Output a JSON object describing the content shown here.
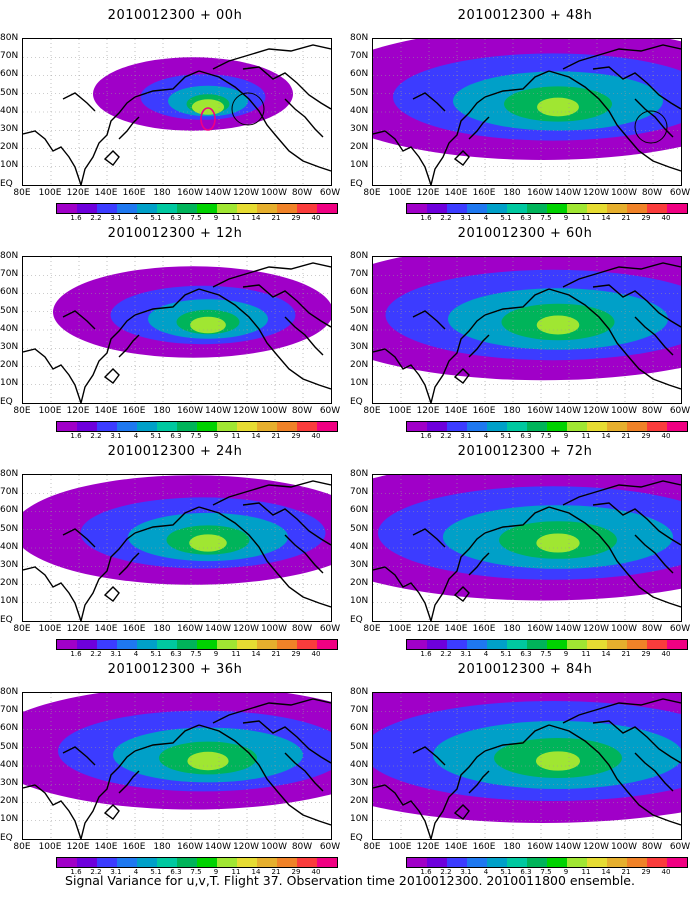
{
  "panels": [
    {
      "title": "2010012300 + 00h",
      "spread": 0.15,
      "level": 0.45
    },
    {
      "title": "2010012300 + 12h",
      "spread": 0.35,
      "level": 0.55
    },
    {
      "title": "2010012300 + 24h",
      "spread": 0.55,
      "level": 0.6
    },
    {
      "title": "2010012300 + 36h",
      "spread": 0.7,
      "level": 0.7
    },
    {
      "title": "2010012300 + 48h",
      "spread": 0.8,
      "level": 0.72
    },
    {
      "title": "2010012300 + 60h",
      "spread": 0.85,
      "level": 0.74
    },
    {
      "title": "2010012300 + 72h",
      "spread": 0.9,
      "level": 0.76
    },
    {
      "title": "2010012300 + 84h",
      "spread": 1.0,
      "level": 0.78
    }
  ],
  "lat_labels": [
    "80N",
    "70N",
    "60N",
    "50N",
    "40N",
    "30N",
    "20N",
    "10N",
    "EQ"
  ],
  "lon_labels": [
    "80E",
    "100E",
    "120E",
    "140E",
    "160E",
    "180",
    "160W",
    "140W",
    "120W",
    "100W",
    "80W",
    "60W"
  ],
  "colorbar": {
    "labels": [
      "1.6",
      "2.2",
      "3.1",
      "4",
      "5.1",
      "6.3",
      "7.5",
      "9",
      "11",
      "14",
      "21",
      "29",
      "40"
    ],
    "colors": [
      "#a000c8",
      "#6e00dc",
      "#3c3cff",
      "#1e78f0",
      "#00a0c8",
      "#00c8a0",
      "#00b45a",
      "#00d200",
      "#a0e632",
      "#e6dc32",
      "#e6af2d",
      "#f08228",
      "#fa3c3c",
      "#f00082"
    ]
  },
  "caption": "Signal Variance for u,v,T. Flight 37. Observation time 2010012300. 2010011800 ensemble."
}
